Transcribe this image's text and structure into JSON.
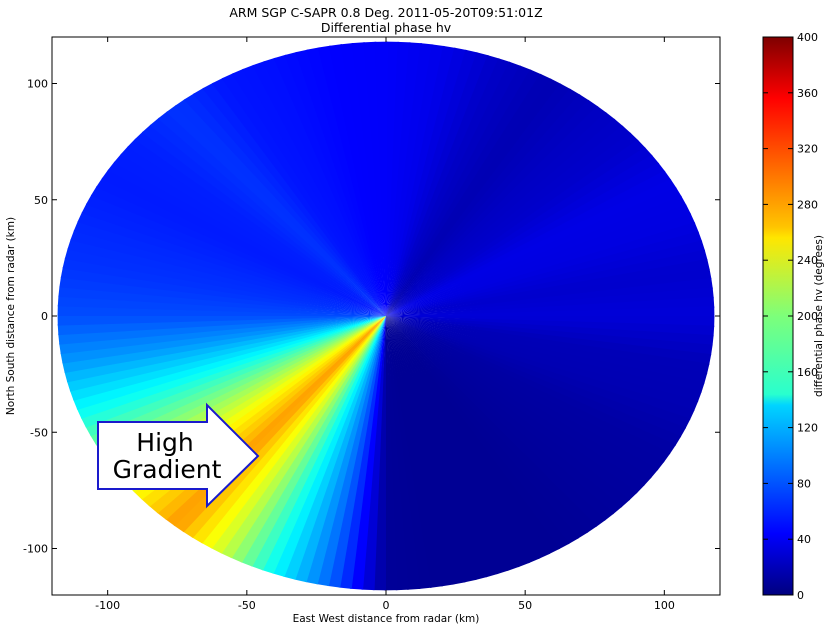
{
  "chart_data": {
    "type": "heatmap",
    "title": "ARM SGP C-SAPR 0.8 Deg. 2011-05-20T09:51:01Z",
    "subtitle": "Differential phase hv",
    "xlabel": "East West distance from radar (km)",
    "ylabel": "North South distance from radar (km)",
    "xlim": [
      -120,
      120
    ],
    "ylim": [
      -120,
      120
    ],
    "xticks": [
      -100,
      -50,
      0,
      50,
      100
    ],
    "yticks": [
      -100,
      -50,
      0,
      50,
      100
    ],
    "colorbar": {
      "label": "differential phase hv (degrees)",
      "range": [
        0,
        400
      ],
      "ticks": [
        0,
        40,
        80,
        120,
        160,
        200,
        240,
        280,
        320,
        360,
        400
      ],
      "colormap": "jet"
    },
    "max_range_km": 118,
    "azimuth_profile": [
      {
        "az": 0,
        "v": 48
      },
      {
        "az": 10,
        "v": 42
      },
      {
        "az": 20,
        "v": 28
      },
      {
        "az": 30,
        "v": 20
      },
      {
        "az": 40,
        "v": 26
      },
      {
        "az": 50,
        "v": 30
      },
      {
        "az": 60,
        "v": 40
      },
      {
        "az": 70,
        "v": 38
      },
      {
        "az": 80,
        "v": 30
      },
      {
        "az": 90,
        "v": 35
      },
      {
        "az": 100,
        "v": 22
      },
      {
        "az": 110,
        "v": 20
      },
      {
        "az": 120,
        "v": 14
      },
      {
        "az": 130,
        "v": 12
      },
      {
        "az": 140,
        "v": 10
      },
      {
        "az": 150,
        "v": 8
      },
      {
        "az": 160,
        "v": 8
      },
      {
        "az": 170,
        "v": 8
      },
      {
        "az": 180,
        "v": 10
      },
      {
        "az": 190,
        "v": 90
      },
      {
        "az": 200,
        "v": 150
      },
      {
        "az": 210,
        "v": 230
      },
      {
        "az": 220,
        "v": 290
      },
      {
        "az": 230,
        "v": 250
      },
      {
        "az": 240,
        "v": 200
      },
      {
        "az": 250,
        "v": 150
      },
      {
        "az": 260,
        "v": 110
      },
      {
        "az": 270,
        "v": 80
      },
      {
        "az": 280,
        "v": 70
      },
      {
        "az": 290,
        "v": 65
      },
      {
        "az": 300,
        "v": 60
      },
      {
        "az": 310,
        "v": 62
      },
      {
        "az": 320,
        "v": 70
      },
      {
        "az": 330,
        "v": 58
      },
      {
        "az": 340,
        "v": 55
      },
      {
        "az": 350,
        "v": 50
      }
    ],
    "annotations": [
      {
        "text": "High Gradient",
        "lines": [
          "High",
          "Gradient"
        ]
      }
    ],
    "colors": {
      "annotation_border": "#1a1acc",
      "annotation_fill": "#ffffff",
      "outside_background": "#ffffff"
    }
  }
}
